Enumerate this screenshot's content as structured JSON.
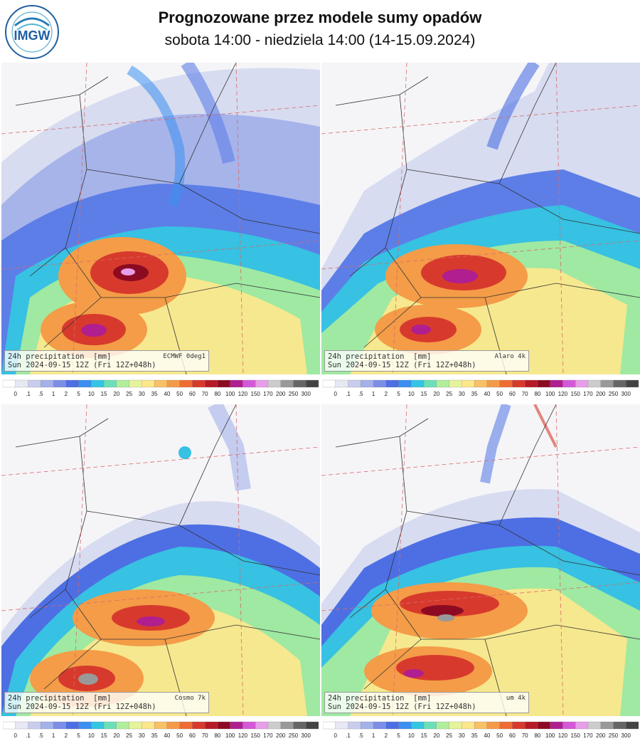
{
  "header": {
    "title": "Prognozowane przez modele sumy opadów",
    "subtitle": "sobota 14:00 - niedziela 14:00 (14-15.09.2024)",
    "logo_text": "IMGW"
  },
  "panels": [
    {
      "variable": "24h precipitation",
      "unit": "[mm]",
      "model": "ECMWF 0deg1",
      "valid": "Sun 2024-09-15 12Z",
      "run": "(Fri 12Z+048h)"
    },
    {
      "variable": "24h precipitation",
      "unit": "[mm]",
      "model": "Alaro 4k",
      "valid": "Sun 2024-09-15 12Z",
      "run": "(Fri 12Z+048h)"
    },
    {
      "variable": "24h precipitation",
      "unit": "[mm]",
      "model": "Cosmo 7k",
      "valid": "Sun 2024-09-15 12Z",
      "run": "(Fri 12Z+048h)"
    },
    {
      "variable": "24h precipitation",
      "unit": "[mm]",
      "model": "um 4k",
      "valid": "Sun 2024-09-15 12Z",
      "run": "(Fri 12Z+048h)"
    }
  ],
  "colorscale": {
    "labels": [
      "0",
      ".1",
      ".5",
      "1",
      "2",
      "5",
      "10",
      "15",
      "20",
      "25",
      "30",
      "35",
      "40",
      "50",
      "60",
      "70",
      "80",
      "100",
      "120",
      "150",
      "170",
      "200",
      "250",
      "300"
    ],
    "colors": [
      "#ffffff",
      "#e8e8f4",
      "#c8cdee",
      "#a4b1ea",
      "#7c8ee6",
      "#4d6fe3",
      "#3a8ff0",
      "#33c5e3",
      "#6be0b8",
      "#b1ee9c",
      "#e5f49a",
      "#fbe68a",
      "#f9c065",
      "#f49a47",
      "#ee6c34",
      "#d73a2c",
      "#b51a26",
      "#8c0b22",
      "#b01e90",
      "#d35ad6",
      "#e79ee8",
      "#cccccc",
      "#999999",
      "#666666",
      "#444444"
    ]
  }
}
